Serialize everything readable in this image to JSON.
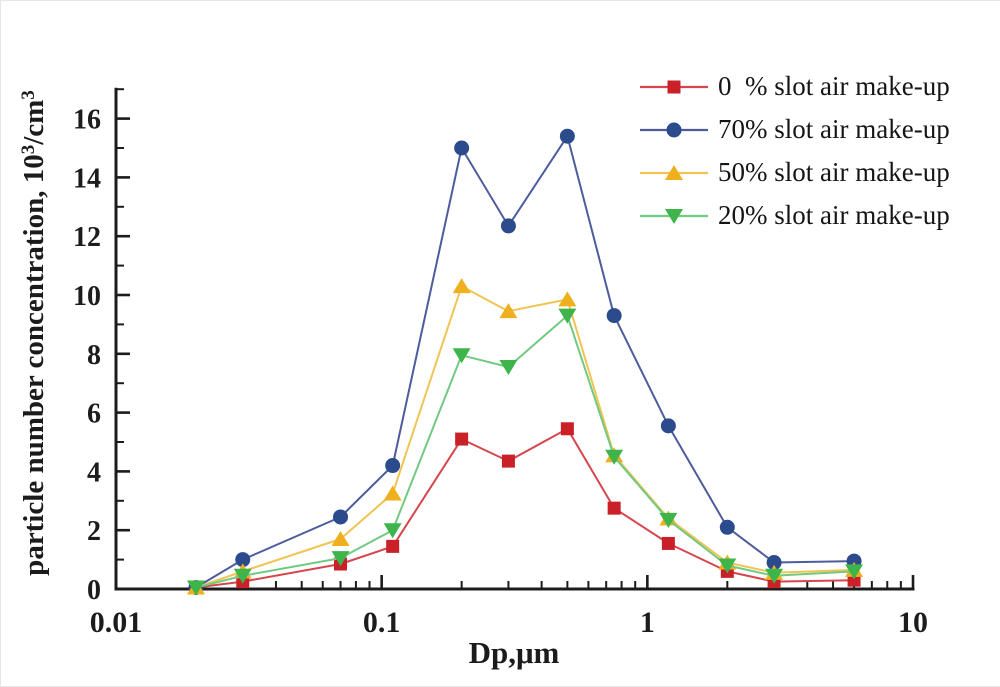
{
  "chart_data": {
    "type": "line",
    "title": "",
    "xlabel": "Dp,μm",
    "ylabel": "particle number concentration, 10³/cm³",
    "ylabel_segments": [
      {
        "text": "particle number concentration, 10",
        "sup": false
      },
      {
        "text": "3",
        "sup": true
      },
      {
        "text": "/cm",
        "sup": false
      },
      {
        "text": "3",
        "sup": true
      }
    ],
    "x_scale": "log",
    "xlim": [
      0.01,
      10
    ],
    "ylim": [
      0,
      17
    ],
    "grid": false,
    "legend_position": "top-right",
    "axis_color": "#1c1c1c",
    "x_ticks": [
      0.01,
      0.1,
      1,
      10
    ],
    "x_tick_labels": [
      "0.01",
      "0.1",
      "1",
      "10"
    ],
    "y_ticks": [
      0,
      2,
      4,
      6,
      8,
      10,
      12,
      14,
      16
    ],
    "y_minor_step": 1,
    "x": [
      0.02,
      0.03,
      0.07,
      0.11,
      0.2,
      0.3,
      0.5,
      0.75,
      1.2,
      2,
      3,
      6
    ],
    "series": [
      {
        "label": "0  % slot air make-up",
        "marker": "square",
        "marker_color": "#c92127",
        "line_color": "#d5464d",
        "values": [
          0.05,
          0.25,
          0.85,
          1.45,
          5.1,
          4.35,
          5.45,
          2.75,
          1.55,
          0.6,
          0.25,
          0.3
        ]
      },
      {
        "label": "70% slot air make-up",
        "marker": "circle",
        "marker_color": "#2c4b8d",
        "line_color": "#4c5c9c",
        "values": [
          0.05,
          1.0,
          2.45,
          4.2,
          15.0,
          12.35,
          15.4,
          9.3,
          5.55,
          2.1,
          0.9,
          0.95
        ]
      },
      {
        "label": "50% slot air make-up",
        "marker": "triangle-up",
        "marker_color": "#eeb11d",
        "line_color": "#f0c452",
        "values": [
          0.05,
          0.6,
          1.7,
          3.25,
          10.3,
          9.45,
          9.85,
          4.55,
          2.4,
          0.9,
          0.55,
          0.65
        ]
      },
      {
        "label": "20% slot air make-up",
        "marker": "triangle-down",
        "marker_color": "#3eb54b",
        "line_color": "#72c981",
        "values": [
          0.05,
          0.45,
          1.05,
          2.0,
          7.95,
          7.55,
          9.3,
          4.5,
          2.35,
          0.8,
          0.45,
          0.6
        ]
      }
    ]
  }
}
